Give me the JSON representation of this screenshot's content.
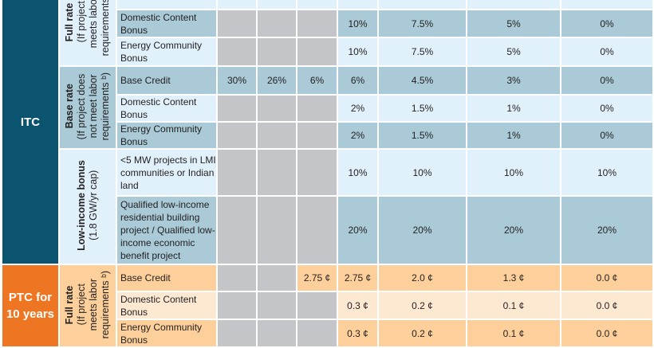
{
  "colors": {
    "itc": "#0b5470",
    "ptc": "#ee7623",
    "light_blue": "#e0f1fb",
    "mid_blue": "#a9cad6",
    "light_orange": "#fde9d2",
    "dark_orange": "#fdd09b",
    "unavailable": "#c3c5c9"
  },
  "sections": [
    {
      "label": "ITC",
      "key": "itc",
      "groups": [
        {
          "title": "Full rate",
          "subtitle_lines": [
            "(If project",
            "meets labor",
            "requirements ᵇ)"
          ],
          "shade": "lb",
          "rows": [
            {
              "item": "",
              "values": [
                "",
                "",
                "",
                "",
                "",
                "",
                ""
              ]
            },
            {
              "item": "Domestic Content Bonus",
              "values": [
                null,
                null,
                null,
                "10%",
                "7.5%",
                "5%",
                "0%"
              ]
            },
            {
              "item": "Energy Community Bonus",
              "values": [
                null,
                null,
                null,
                "10%",
                "7.5%",
                "5%",
                "0%"
              ]
            }
          ]
        },
        {
          "title": "Base rate",
          "subtitle_lines": [
            "(If project does",
            "not meet labor",
            "requirements ᵇ)"
          ],
          "shade": "mb",
          "rows": [
            {
              "item": "Base Credit",
              "values": [
                "30%",
                "26%",
                "6%",
                "6%",
                "4.5%",
                "3%",
                "0%"
              ]
            },
            {
              "item": "Domestic Content Bonus",
              "values": [
                null,
                null,
                null,
                "2%",
                "1.5%",
                "1%",
                "0%"
              ]
            },
            {
              "item": "Energy Community Bonus",
              "values": [
                null,
                null,
                null,
                "2%",
                "1.5%",
                "1%",
                "0%"
              ]
            }
          ]
        },
        {
          "title": "Low-income bonus",
          "subtitle_lines": [
            "(1.8 GW/yr cap)"
          ],
          "shade": "lb",
          "rows": [
            {
              "item": "<5 MW projects in LMI communities or Indian land",
              "values": [
                null,
                null,
                null,
                "10%",
                "10%",
                "10%",
                "10%"
              ]
            },
            {
              "item": "Qualified low-income residential building project / Qualified low-income economic benefit project",
              "values": [
                null,
                null,
                null,
                "20%",
                "20%",
                "20%",
                "20%"
              ]
            }
          ]
        }
      ]
    },
    {
      "label": "PTC for 10 years",
      "key": "ptc",
      "groups": [
        {
          "title": "Full rate",
          "subtitle_lines": [
            "(If project",
            "meets labor",
            "requirements ᵇ)"
          ],
          "shade": "do",
          "rows": [
            {
              "item": "Base Credit",
              "values": [
                null,
                null,
                "2.75 ¢",
                "2.75 ¢",
                "2.0 ¢",
                "1.3 ¢",
                "0.0 ¢"
              ]
            },
            {
              "item": "Domestic Content Bonus",
              "values": [
                null,
                null,
                null,
                "0.3 ¢",
                "0.2 ¢",
                "0.1 ¢",
                "0.0 ¢"
              ]
            },
            {
              "item": "Energy Community Bonus",
              "values": [
                null,
                null,
                null,
                "0.3 ¢",
                "0.2 ¢",
                "0.1 ¢",
                "0.0 ¢"
              ]
            }
          ]
        }
      ]
    }
  ]
}
